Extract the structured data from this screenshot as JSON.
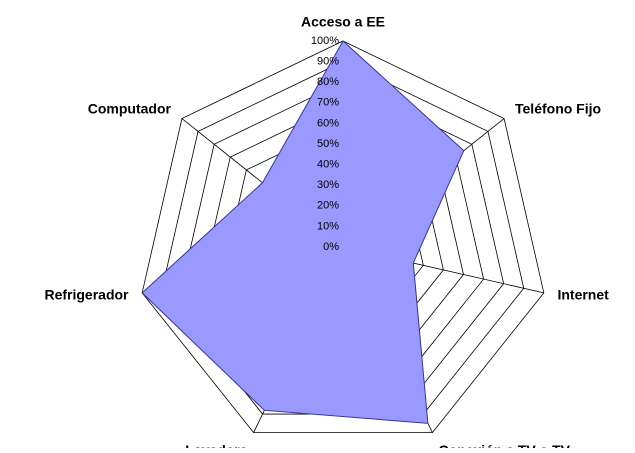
{
  "chart_data": {
    "type": "radar",
    "categories": [
      "Acceso a EE",
      "Teléfono Fijo",
      "Internet",
      "Conexión a TV o TV",
      "Lavadora",
      "Refrigerador",
      "Computador"
    ],
    "values": [
      100,
      75,
      35,
      95,
      88,
      100,
      50
    ],
    "color": "#9999ff",
    "ylim": [
      0,
      100
    ],
    "yticks": [
      {
        "value": 0,
        "label": "0%"
      },
      {
        "value": 10,
        "label": "10%"
      },
      {
        "value": 20,
        "label": "20%"
      },
      {
        "value": 30,
        "label": "30%"
      },
      {
        "value": 40,
        "label": "40%"
      },
      {
        "value": 50,
        "label": "50%"
      },
      {
        "value": 60,
        "label": "60%"
      },
      {
        "value": 70,
        "label": "70%"
      },
      {
        "value": 80,
        "label": "80%"
      },
      {
        "value": 90,
        "label": "90%"
      },
      {
        "value": 100,
        "label": "100%"
      }
    ],
    "grid": true
  }
}
